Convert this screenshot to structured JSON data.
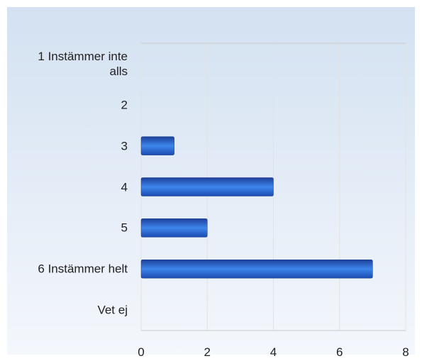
{
  "chart_data": {
    "type": "barh",
    "categories": [
      "1 Instämmer inte alls",
      "2",
      "3",
      "4",
      "5",
      "6 Instämmer helt",
      "Vet ej"
    ],
    "values": [
      0,
      0,
      1,
      4,
      2,
      7,
      0
    ],
    "color": "#2f6fd6",
    "xlim": [
      0,
      8
    ],
    "xticks": [
      0,
      2,
      4,
      6,
      8
    ],
    "grid": true
  }
}
